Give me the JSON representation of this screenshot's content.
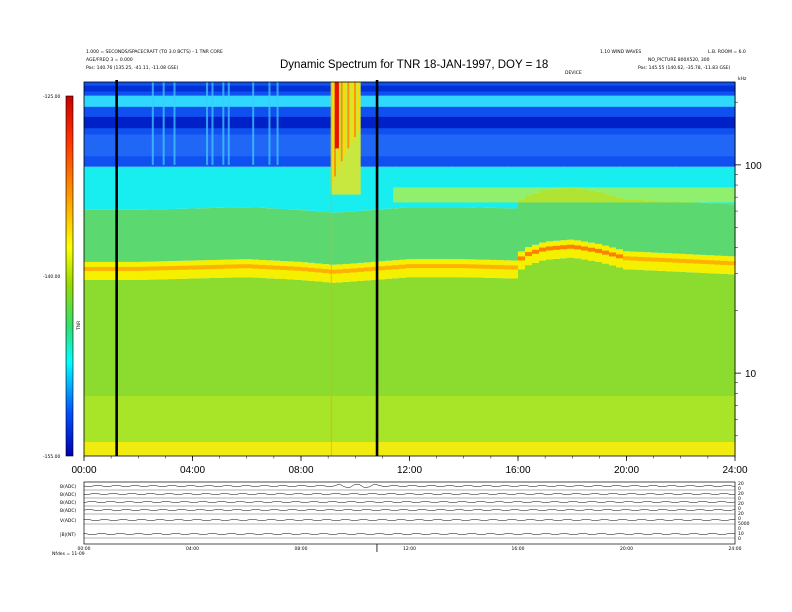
{
  "header": {
    "title": "Dynamic Spectrum for TNR 18-JAN-1997, DOY = 18",
    "left_line1": "1.000 = SECONDS/SPACECRAFT (TO 3.0 BCTS) - 1 TNR CORE",
    "left_line2": "AGE/FREQ 3 = 0.000",
    "left_line3": "Pos: 140.76 (135.25, -41.11, -11.08 GSE)",
    "right_line1": "1.10 WIND WAVES",
    "right_line1b": "L.B. ROOM = 6.0",
    "right_line2": "NO_PICTURE 800X520, 300",
    "right_line3": "Pos: 145.55 (140.62, -35.78, -11.83 GSE)",
    "center_label": "DEVICE",
    "corner_label": "kHz"
  },
  "colorbar": {
    "ticks": [
      "-125.00",
      "-140.00",
      "-155.00"
    ],
    "label": "TNR",
    "colors": [
      "#c80000",
      "#ff3000",
      "#ff9a00",
      "#ffff00",
      "#9adc00",
      "#00ffff",
      "#0050ff",
      "#0000b0"
    ]
  },
  "chart_data": {
    "type": "heatmap",
    "title": "Dynamic Spectrum for TNR 18-JAN-1997, DOY = 18",
    "xlabel": "",
    "ylabel": "",
    "x_ticks": [
      "00:00",
      "04:00",
      "08:00",
      "12:00",
      "16:00",
      "20:00",
      "24:00"
    ],
    "x_range_hours": [
      0,
      24
    ],
    "y_scale": "log",
    "y_range_khz": [
      4,
      250
    ],
    "y_ticks": [
      "100",
      "10"
    ],
    "y_tick_values": [
      100,
      10
    ],
    "colorbar_range_db": [
      -155,
      -125
    ],
    "colorbar_ticks": [
      -125,
      -140,
      -155
    ],
    "markers_hours": [
      1.2,
      10.8
    ],
    "features": {
      "plasma_line_hours": [
        0,
        2,
        4,
        6,
        8,
        9.2,
        10,
        12,
        14,
        15.9,
        16.2,
        17,
        18,
        19,
        20,
        22,
        24
      ],
      "plasma_line_khz": [
        32,
        32,
        32.5,
        33,
        32,
        31,
        31.5,
        33,
        33,
        32.5,
        37,
        40,
        41,
        39,
        36,
        35,
        34
      ],
      "burst_hours": [
        9.1,
        10.2
      ],
      "upper_band_khz": [
        70,
        250
      ]
    }
  },
  "bottom_panel": {
    "rows": [
      "B(ADC)",
      "B(ADC)",
      "B(ADC)",
      "B(ADC)",
      "V(ADC)",
      "|B|(NT)"
    ],
    "right_ticks": [
      "20",
      "0",
      "20",
      "0",
      "20",
      "0",
      "20",
      "0",
      "5000",
      "0",
      "10",
      "0"
    ],
    "x_ticks": [
      "00:00",
      "04:00",
      "08:00",
      "12:00",
      "16:00",
      "20:00",
      "24:00"
    ],
    "footer": "Nfdes = 11-09"
  }
}
